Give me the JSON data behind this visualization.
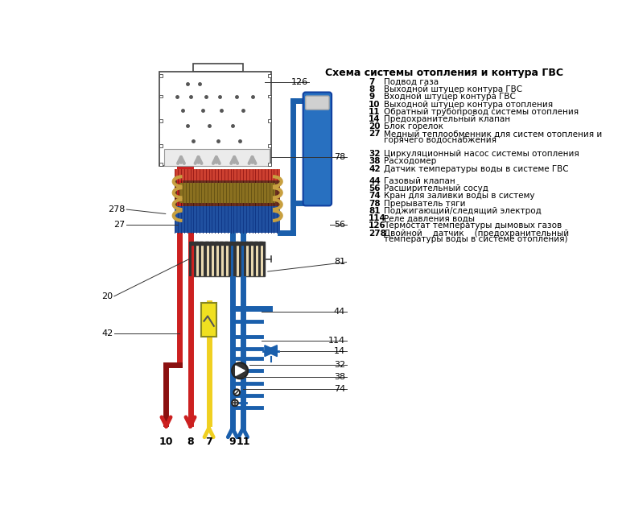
{
  "title": "Схема системы отопления и контура ГВС",
  "bg_color": "#ffffff",
  "legend_items_group1": [
    [
      "7",
      "Подвод газа"
    ],
    [
      "8",
      "Выходной штуцер контура ГВС"
    ],
    [
      "9",
      "Входной штуцер контура ГВС"
    ],
    [
      "10",
      "Выходной штуцер контура отопления"
    ],
    [
      "11",
      "Обратный трубопровод системы отопления"
    ],
    [
      "14",
      "Предохранительный клапан"
    ],
    [
      "20",
      "Блок горелок"
    ],
    [
      "27",
      "Медный теплообменник для систем отопления и горячего водоснабжения"
    ],
    [
      "32",
      "Циркуляционный насос системы отопления"
    ],
    [
      "38",
      "Расходомер"
    ],
    [
      "42",
      "Датчик температуры воды в системе ГВС"
    ]
  ],
  "legend_items_group2": [
    [
      "44",
      "Газовый клапан"
    ],
    [
      "56",
      "Расширительный сосуд"
    ],
    [
      "74",
      "Кран для заливки воды в систему"
    ],
    [
      "78",
      "Прерыватель тяги"
    ],
    [
      "81",
      "Поджигающий/следящий электрод"
    ],
    [
      "114",
      "Реле давления воды"
    ],
    [
      "126",
      "Термостат температуры дымовых газов"
    ],
    [
      "278",
      "Двойной    датчик    (предохранительный температуры воды в системе отопления)"
    ]
  ],
  "red_color": "#cc2020",
  "dark_red_color": "#8b1010",
  "blue_color": "#1a5fac",
  "yellow_color": "#f0d020",
  "pipe_lw": 5
}
